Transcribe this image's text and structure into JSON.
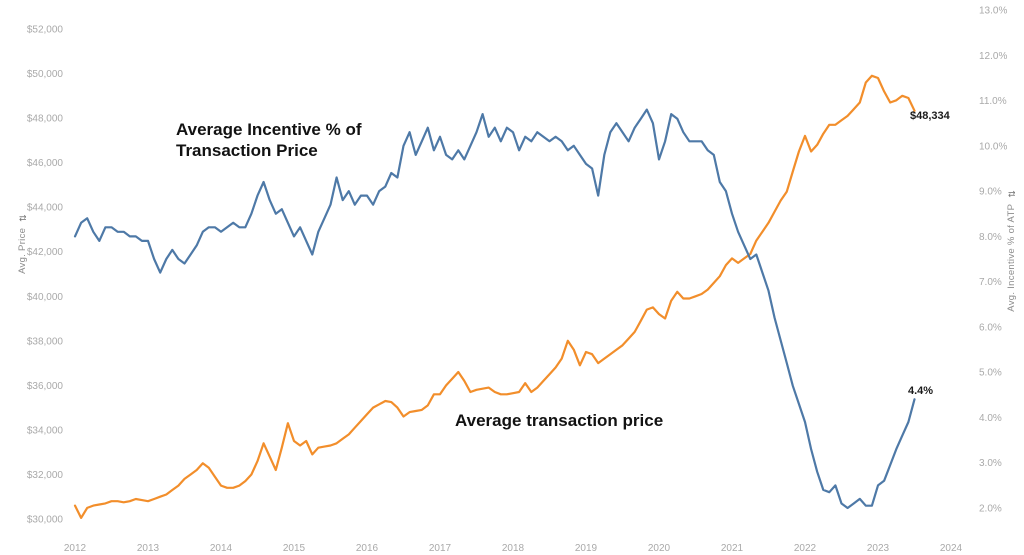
{
  "chart_data": {
    "type": "line",
    "title": "",
    "legend_position": "none",
    "grid": false,
    "x_axis": {
      "start": "2012-01",
      "end": "2023-07",
      "frequency": "monthly",
      "tick_labels": [
        "2012",
        "2013",
        "2014",
        "2015",
        "2016",
        "2017",
        "2018",
        "2019",
        "2020",
        "2021",
        "2022",
        "2023",
        "2024"
      ]
    },
    "left_axis": {
      "title": "Avg. Price",
      "range": [
        30000,
        52000
      ],
      "ticks": [
        {
          "label": "$52,000",
          "value": 52000
        },
        {
          "label": "$50,000",
          "value": 50000
        },
        {
          "label": "$48,000",
          "value": 48000
        },
        {
          "label": "$46,000",
          "value": 46000
        },
        {
          "label": "$44,000",
          "value": 44000
        },
        {
          "label": "$42,000",
          "value": 42000
        },
        {
          "label": "$40,000",
          "value": 40000
        },
        {
          "label": "$38,000",
          "value": 38000
        },
        {
          "label": "$36,000",
          "value": 36000
        },
        {
          "label": "$34,000",
          "value": 34000
        },
        {
          "label": "$32,000",
          "value": 32000
        },
        {
          "label": "$30,000",
          "value": 30000
        }
      ]
    },
    "right_axis": {
      "title": "Avg. Incentive % of ATP",
      "range": [
        2,
        13
      ],
      "ticks": [
        {
          "label": "13.0%",
          "value": 13
        },
        {
          "label": "12.0%",
          "value": 12
        },
        {
          "label": "11.0%",
          "value": 11
        },
        {
          "label": "10.0%",
          "value": 10
        },
        {
          "label": "9.0%",
          "value": 9
        },
        {
          "label": "8.0%",
          "value": 8
        },
        {
          "label": "7.0%",
          "value": 7
        },
        {
          "label": "6.0%",
          "value": 6
        },
        {
          "label": "5.0%",
          "value": 5
        },
        {
          "label": "4.0%",
          "value": 4
        },
        {
          "label": "3.0%",
          "value": 3
        },
        {
          "label": "2.0%",
          "value": 2
        }
      ]
    },
    "series": [
      {
        "name": "Average transaction price",
        "axis": "left",
        "unit": "USD",
        "color": "#f28e2b",
        "last_value_label": "$48,334",
        "values": [
          30600,
          30050,
          30500,
          30600,
          30650,
          30700,
          30800,
          30800,
          30750,
          30800,
          30900,
          30850,
          30800,
          30900,
          31000,
          31100,
          31300,
          31500,
          31800,
          32000,
          32200,
          32500,
          32300,
          31900,
          31500,
          31400,
          31400,
          31500,
          31700,
          32000,
          32600,
          33400,
          32800,
          32200,
          33200,
          34300,
          33500,
          33300,
          33500,
          32900,
          33200,
          33250,
          33300,
          33400,
          33600,
          33800,
          34100,
          34400,
          34700,
          35000,
          35150,
          35300,
          35250,
          35000,
          34600,
          34800,
          34850,
          34900,
          35100,
          35600,
          35600,
          36000,
          36300,
          36600,
          36200,
          35700,
          35800,
          35850,
          35900,
          35700,
          35600,
          35600,
          35650,
          35700,
          36100,
          35700,
          35900,
          36200,
          36500,
          36800,
          37200,
          38000,
          37600,
          36900,
          37500,
          37400,
          37000,
          37200,
          37400,
          37600,
          37800,
          38100,
          38400,
          38900,
          39400,
          39500,
          39200,
          39000,
          39800,
          40200,
          39900,
          39900,
          40000,
          40100,
          40300,
          40600,
          40900,
          41400,
          41700,
          41500,
          41700,
          41900,
          42500,
          42900,
          43300,
          43800,
          44300,
          44700,
          45600,
          46500,
          47200,
          46500,
          46800,
          47300,
          47700,
          47700,
          47900,
          48100,
          48400,
          48700,
          49600,
          49900,
          49800,
          49200,
          48700,
          48800,
          49000,
          48900,
          48334
        ]
      },
      {
        "name": "Average Incentive % of Transaction Price",
        "axis": "right",
        "unit": "%",
        "color": "#4e79a7",
        "last_value_label": "4.4%",
        "values": [
          8.0,
          8.3,
          8.4,
          8.1,
          7.9,
          8.2,
          8.2,
          8.1,
          8.1,
          8.0,
          8.0,
          7.9,
          7.9,
          7.5,
          7.2,
          7.5,
          7.7,
          7.5,
          7.4,
          7.6,
          7.8,
          8.1,
          8.2,
          8.2,
          8.1,
          8.2,
          8.3,
          8.2,
          8.2,
          8.5,
          8.9,
          9.2,
          8.8,
          8.5,
          8.6,
          8.3,
          8.0,
          8.2,
          7.9,
          7.6,
          8.1,
          8.4,
          8.7,
          9.3,
          8.8,
          9.0,
          8.7,
          8.9,
          8.9,
          8.7,
          9.0,
          9.1,
          9.4,
          9.3,
          10.0,
          10.3,
          9.8,
          10.1,
          10.4,
          9.9,
          10.2,
          9.8,
          9.7,
          9.9,
          9.7,
          10.0,
          10.3,
          10.7,
          10.2,
          10.4,
          10.1,
          10.4,
          10.3,
          9.9,
          10.2,
          10.1,
          10.3,
          10.2,
          10.1,
          10.2,
          10.1,
          9.9,
          10.0,
          9.8,
          9.6,
          9.5,
          8.9,
          9.8,
          10.3,
          10.5,
          10.3,
          10.1,
          10.4,
          10.6,
          10.8,
          10.5,
          9.7,
          10.1,
          10.7,
          10.6,
          10.3,
          10.1,
          10.1,
          10.1,
          9.9,
          9.8,
          9.2,
          9.0,
          8.5,
          8.1,
          7.8,
          7.5,
          7.6,
          7.2,
          6.8,
          6.2,
          5.7,
          5.2,
          4.7,
          4.3,
          3.9,
          3.3,
          2.8,
          2.4,
          2.35,
          2.5,
          2.1,
          2.0,
          2.1,
          2.2,
          2.05,
          2.05,
          2.5,
          2.6,
          2.95,
          3.3,
          3.6,
          3.9,
          4.4
        ]
      }
    ]
  },
  "annotations": {
    "incentive_line1": "Average Incentive % of",
    "incentive_line2": "Transaction Price",
    "atp_label": "Average transaction price",
    "atp_end_value": "$48,334",
    "incentive_end_value": "4.4%"
  },
  "icons": {
    "sort_glyph": "⇅"
  }
}
